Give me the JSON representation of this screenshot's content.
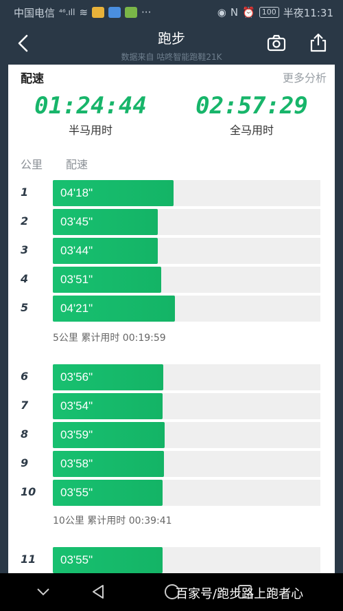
{
  "status_bar": {
    "carrier": "中国电信",
    "signal": "⁴⁶.ıll",
    "battery": "100",
    "time": "半夜11:31"
  },
  "header": {
    "title": "跑步",
    "subtitle": "数据来自 咕咚智能跑鞋21K"
  },
  "pace_section": {
    "title": "配速",
    "more_label": "更多分析",
    "half_marathon": {
      "value": "01:24:44",
      "label": "半马用时"
    },
    "full_marathon": {
      "value": "02:57:29",
      "label": "全马用时"
    },
    "col_km": "公里",
    "col_pace": "配速",
    "splits": [
      {
        "km": "1",
        "pace": "04'18\"",
        "seconds": 258
      },
      {
        "km": "2",
        "pace": "03'45\"",
        "seconds": 225
      },
      {
        "km": "3",
        "pace": "03'44\"",
        "seconds": 224
      },
      {
        "km": "4",
        "pace": "03'51\"",
        "seconds": 231
      },
      {
        "km": "5",
        "pace": "04'21\"",
        "seconds": 261
      },
      {
        "km": "6",
        "pace": "03'56\"",
        "seconds": 236
      },
      {
        "km": "7",
        "pace": "03'54\"",
        "seconds": 234
      },
      {
        "km": "8",
        "pace": "03'59\"",
        "seconds": 239
      },
      {
        "km": "9",
        "pace": "03'58\"",
        "seconds": 238
      },
      {
        "km": "10",
        "pace": "03'55\"",
        "seconds": 235
      },
      {
        "km": "11",
        "pace": "03'55\"",
        "seconds": 235
      }
    ],
    "cumulative": [
      {
        "label": "5公里 累计用时 00:19:59"
      },
      {
        "label": "10公里 累计用时 00:39:41"
      }
    ]
  },
  "watermark": "百家号/跑步路上跑者心",
  "colors": {
    "accent": "#17b56a",
    "header_bg": "#2a3846"
  }
}
